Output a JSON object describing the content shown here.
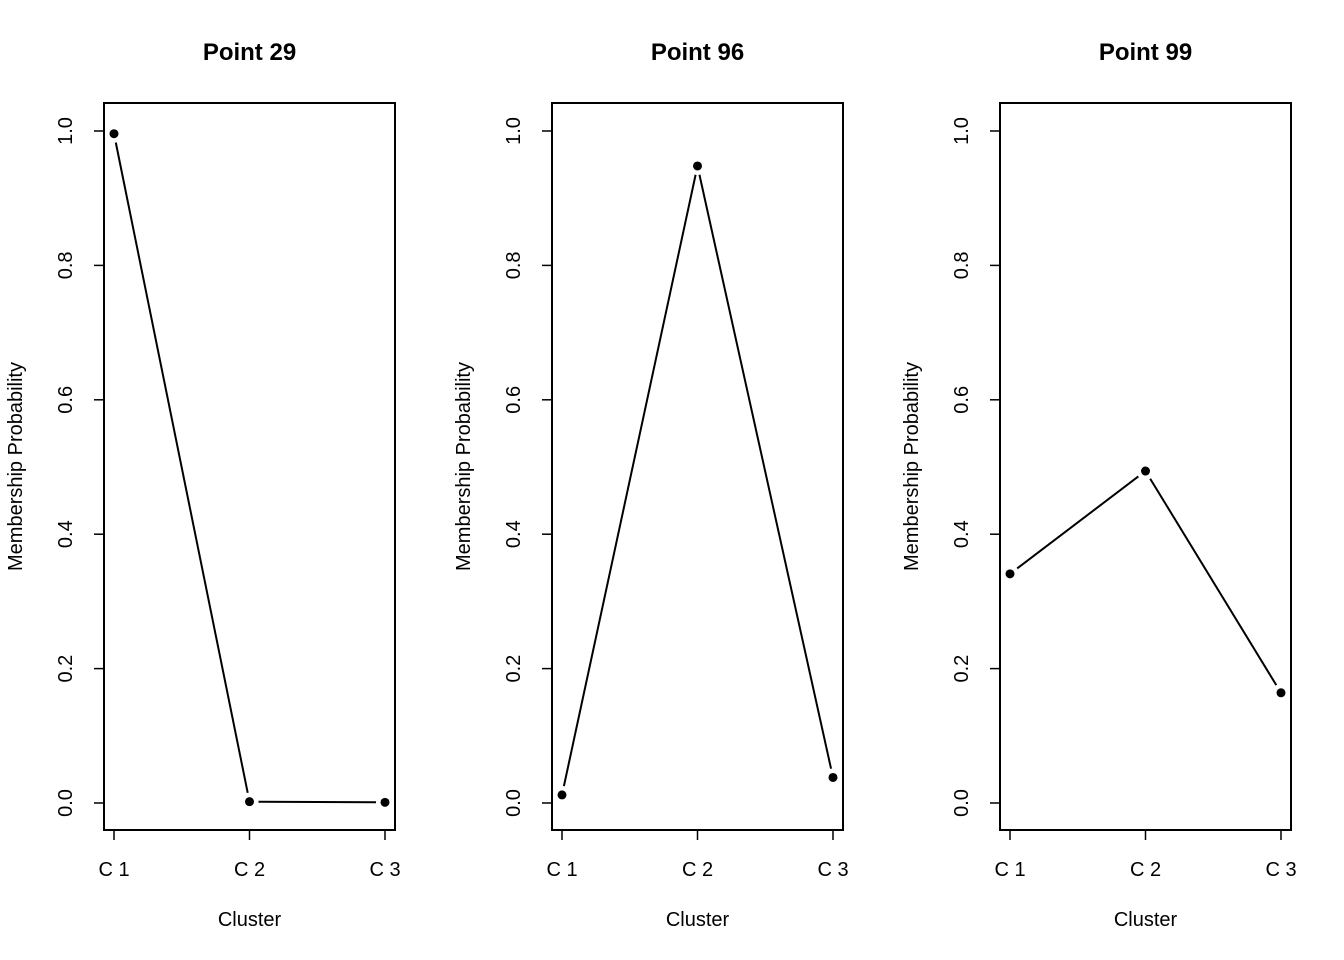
{
  "chart_data": [
    {
      "type": "line",
      "title": "Point 29",
      "xlabel": "Cluster",
      "ylabel": "Membership Probability",
      "categories": [
        "C 1",
        "C 2",
        "C 3"
      ],
      "values": [
        0.996,
        0.002,
        0.001
      ],
      "ylim": [
        0,
        1
      ],
      "yticks": [
        "0.0",
        "0.2",
        "0.4",
        "0.6",
        "0.8",
        "1.0"
      ],
      "grid": false
    },
    {
      "type": "line",
      "title": "Point 96",
      "xlabel": "Cluster",
      "ylabel": "Membership Probability",
      "categories": [
        "C 1",
        "C 2",
        "C 3"
      ],
      "values": [
        0.012,
        0.948,
        0.038
      ],
      "ylim": [
        0,
        1
      ],
      "yticks": [
        "0.0",
        "0.2",
        "0.4",
        "0.6",
        "0.8",
        "1.0"
      ],
      "grid": false
    },
    {
      "type": "line",
      "title": "Point 99",
      "xlabel": "Cluster",
      "ylabel": "Membership Probability",
      "categories": [
        "C 1",
        "C 2",
        "C 3"
      ],
      "values": [
        0.341,
        0.494,
        0.164
      ],
      "ylim": [
        0,
        1
      ],
      "yticks": [
        "0.0",
        "0.2",
        "0.4",
        "0.6",
        "0.8",
        "1.0"
      ],
      "grid": false
    }
  ]
}
